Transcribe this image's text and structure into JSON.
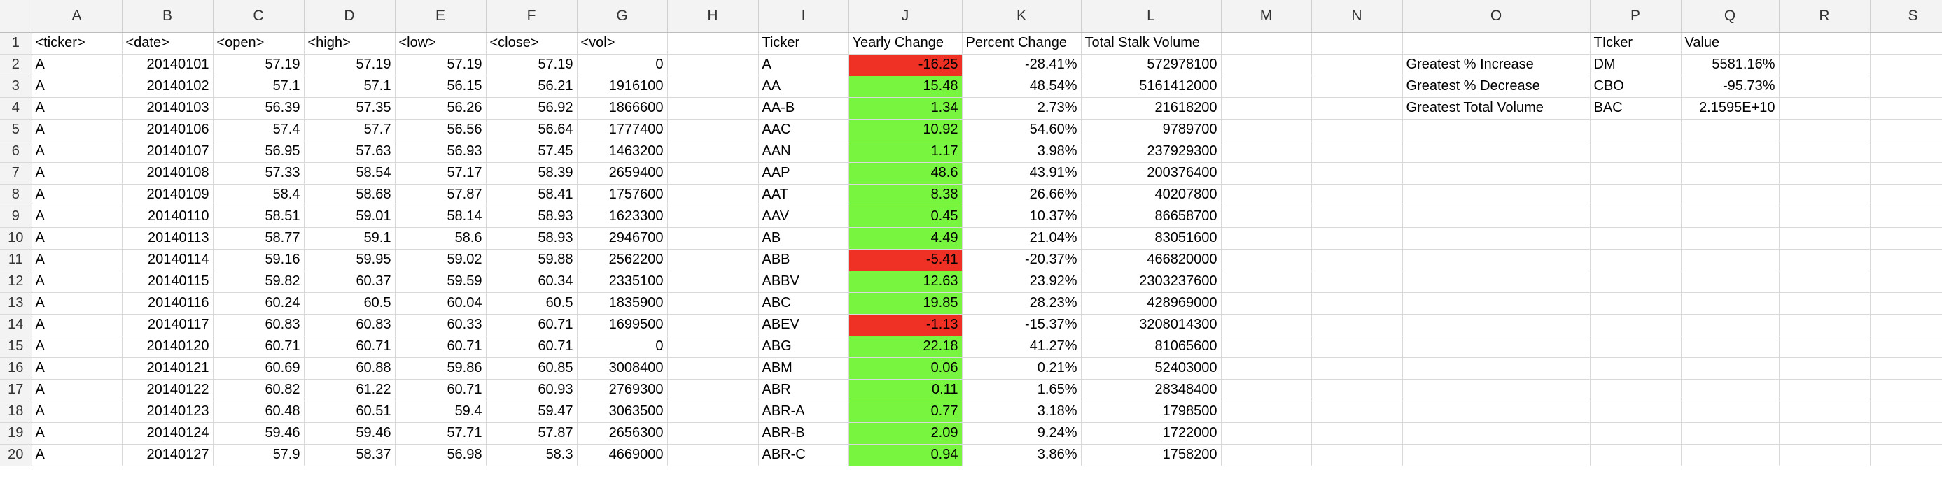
{
  "columns": [
    "A",
    "B",
    "C",
    "D",
    "E",
    "F",
    "G",
    "H",
    "I",
    "J",
    "K",
    "L",
    "M",
    "N",
    "O",
    "P",
    "Q",
    "R",
    "S"
  ],
  "active_column": "N",
  "colors": {
    "negative_fill": "#ee3124",
    "positive_fill": "#78f53f",
    "active_header": "#2e7d32"
  },
  "headers": {
    "raw": [
      "<ticker>",
      "<date>",
      "<open>",
      "<high>",
      "<low>",
      "<close>",
      "<vol>"
    ],
    "summary": [
      "Ticker",
      "Yearly Change",
      "Percent Change",
      "Total Stalk Volume"
    ],
    "greatest": [
      "TIcker",
      "Value"
    ]
  },
  "raw_rows": [
    [
      "A",
      "20140101",
      "57.19",
      "57.19",
      "57.19",
      "57.19",
      "0"
    ],
    [
      "A",
      "20140102",
      "57.1",
      "57.1",
      "56.15",
      "56.21",
      "1916100"
    ],
    [
      "A",
      "20140103",
      "56.39",
      "57.35",
      "56.26",
      "56.92",
      "1866600"
    ],
    [
      "A",
      "20140106",
      "57.4",
      "57.7",
      "56.56",
      "56.64",
      "1777400"
    ],
    [
      "A",
      "20140107",
      "56.95",
      "57.63",
      "56.93",
      "57.45",
      "1463200"
    ],
    [
      "A",
      "20140108",
      "57.33",
      "58.54",
      "57.17",
      "58.39",
      "2659400"
    ],
    [
      "A",
      "20140109",
      "58.4",
      "58.68",
      "57.87",
      "58.41",
      "1757600"
    ],
    [
      "A",
      "20140110",
      "58.51",
      "59.01",
      "58.14",
      "58.93",
      "1623300"
    ],
    [
      "A",
      "20140113",
      "58.77",
      "59.1",
      "58.6",
      "58.93",
      "2946700"
    ],
    [
      "A",
      "20140114",
      "59.16",
      "59.95",
      "59.02",
      "59.88",
      "2562200"
    ],
    [
      "A",
      "20140115",
      "59.82",
      "60.37",
      "59.59",
      "60.34",
      "2335100"
    ],
    [
      "A",
      "20140116",
      "60.24",
      "60.5",
      "60.04",
      "60.5",
      "1835900"
    ],
    [
      "A",
      "20140117",
      "60.83",
      "60.83",
      "60.33",
      "60.71",
      "1699500"
    ],
    [
      "A",
      "20140120",
      "60.71",
      "60.71",
      "60.71",
      "60.71",
      "0"
    ],
    [
      "A",
      "20140121",
      "60.69",
      "60.88",
      "59.86",
      "60.85",
      "3008400"
    ],
    [
      "A",
      "20140122",
      "60.82",
      "61.22",
      "60.71",
      "60.93",
      "2769300"
    ],
    [
      "A",
      "20140123",
      "60.48",
      "60.51",
      "59.4",
      "59.47",
      "3063500"
    ],
    [
      "A",
      "20140124",
      "59.46",
      "59.46",
      "57.71",
      "57.87",
      "2656300"
    ],
    [
      "A",
      "20140127",
      "57.9",
      "58.37",
      "56.98",
      "58.3",
      "4669000"
    ]
  ],
  "summary_rows": [
    [
      "A",
      "-16.25",
      "-28.41%",
      "572978100"
    ],
    [
      "AA",
      "15.48",
      "48.54%",
      "5161412000"
    ],
    [
      "AA-B",
      "1.34",
      "2.73%",
      "21618200"
    ],
    [
      "AAC",
      "10.92",
      "54.60%",
      "9789700"
    ],
    [
      "AAN",
      "1.17",
      "3.98%",
      "237929300"
    ],
    [
      "AAP",
      "48.6",
      "43.91%",
      "200376400"
    ],
    [
      "AAT",
      "8.38",
      "26.66%",
      "40207800"
    ],
    [
      "AAV",
      "0.45",
      "10.37%",
      "86658700"
    ],
    [
      "AB",
      "4.49",
      "21.04%",
      "83051600"
    ],
    [
      "ABB",
      "-5.41",
      "-20.37%",
      "466820000"
    ],
    [
      "ABBV",
      "12.63",
      "23.92%",
      "2303237600"
    ],
    [
      "ABC",
      "19.85",
      "28.23%",
      "428969000"
    ],
    [
      "ABEV",
      "-1.13",
      "-15.37%",
      "3208014300"
    ],
    [
      "ABG",
      "22.18",
      "41.27%",
      "81065600"
    ],
    [
      "ABM",
      "0.06",
      "0.21%",
      "52403000"
    ],
    [
      "ABR",
      "0.11",
      "1.65%",
      "28348400"
    ],
    [
      "ABR-A",
      "0.77",
      "3.18%",
      "1798500"
    ],
    [
      "ABR-B",
      "2.09",
      "9.24%",
      "1722000"
    ],
    [
      "ABR-C",
      "0.94",
      "3.86%",
      "1758200"
    ]
  ],
  "greatest_rows": [
    [
      "Greatest % Increase",
      "DM",
      "5581.16%"
    ],
    [
      "Greatest % Decrease",
      "CBO",
      "-95.73%"
    ],
    [
      "Greatest Total Volume",
      "BAC",
      "2.1595E+10"
    ]
  ]
}
